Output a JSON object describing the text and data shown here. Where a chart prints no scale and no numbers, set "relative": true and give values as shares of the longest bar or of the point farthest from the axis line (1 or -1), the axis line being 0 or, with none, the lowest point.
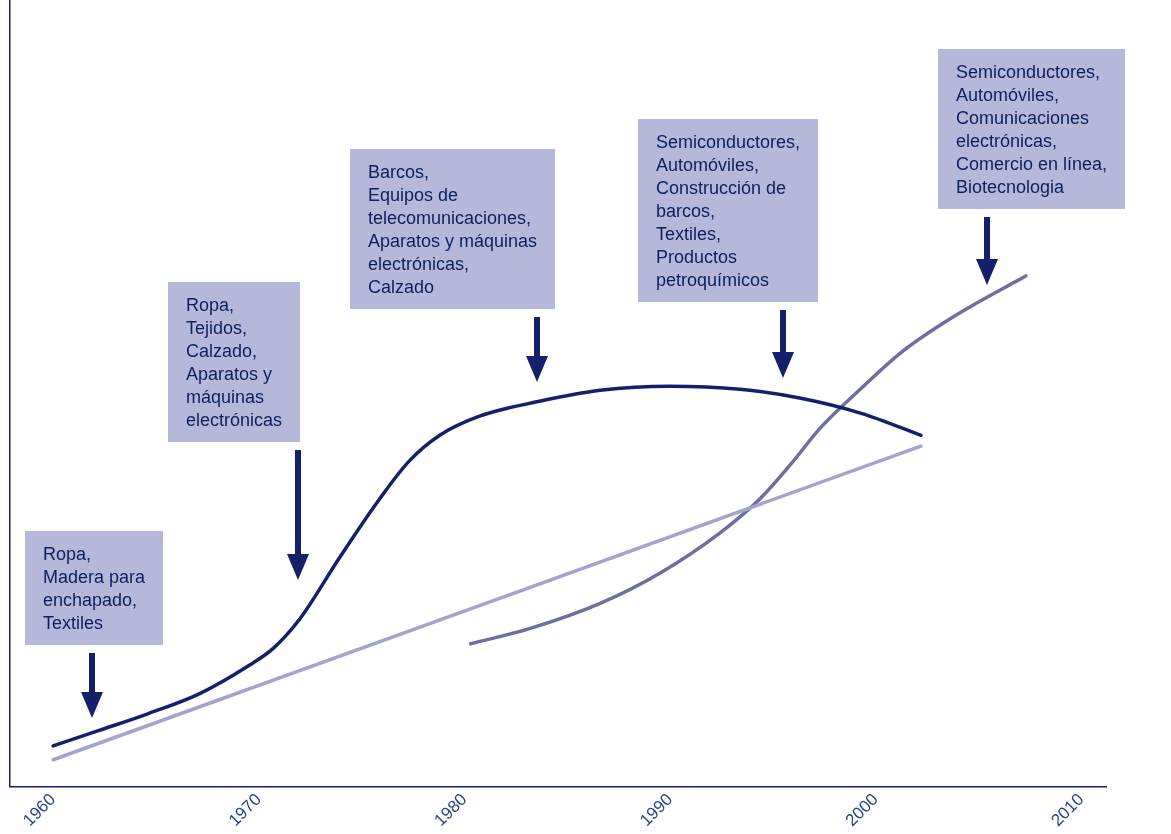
{
  "chart_data": {
    "type": "line",
    "relative": true,
    "xlim": [
      1957.9,
      2011.2
    ],
    "xticks": [
      1960,
      1970,
      1980,
      1990,
      2000,
      2010
    ],
    "grid": false,
    "legend": false,
    "marker": "none",
    "line_style": "solid",
    "series": [
      {
        "color": "#14206a",
        "x": [
          1960,
          1962.2,
          1964.6,
          1967.1,
          1969.5,
          1970.7,
          1972.0,
          1973.9,
          1975.9,
          1977.3,
          1978.8,
          1980.7,
          1983.7,
          1986.6,
          1990.0,
          1993.4,
          1996.3,
          1999.3,
          2002.2
        ],
        "values": [
          0.08,
          0.11,
          0.143,
          0.182,
          0.237,
          0.271,
          0.329,
          0.447,
          0.565,
          0.637,
          0.688,
          0.725,
          0.755,
          0.776,
          0.784,
          0.778,
          0.761,
          0.731,
          0.688
        ]
      },
      {
        "color": "#a3a3cc",
        "x": [
          1960,
          2002.2
        ],
        "values": [
          0.053,
          0.667
        ]
      },
      {
        "color": "#6f6f9f",
        "x": [
          1980.3,
          1983.2,
          1986.6,
          1989.5,
          1992.4,
          1994.4,
          1995.9,
          1997.3,
          1999.3,
          2001.2,
          2003.7,
          2007.3
        ],
        "values": [
          0.28,
          0.31,
          0.359,
          0.418,
          0.496,
          0.565,
          0.633,
          0.702,
          0.78,
          0.849,
          0.918,
          1
        ]
      }
    ],
    "annotations": [
      "Ropa,\nMadera para\nenchapado,\nTextiles",
      "Ropa,\nTejidos,\nCalzado,\nAparatos y\nmáquinas\nelectrónicas",
      "Barcos,\nEquipos de\ntelecomunicaciones,\nAparatos y máquinas\nelectrónicas,\nCalzado",
      "Semiconductores,\nAutomóviles,\nConstrucción de\nbarcos,\nTextiles,\nProductos\npetroquímicos",
      "Semiconductores,\nAutomóviles,\nComunicaciones\nelectrónicas,\nComercio en línea,\nBiotecnologia"
    ]
  }
}
